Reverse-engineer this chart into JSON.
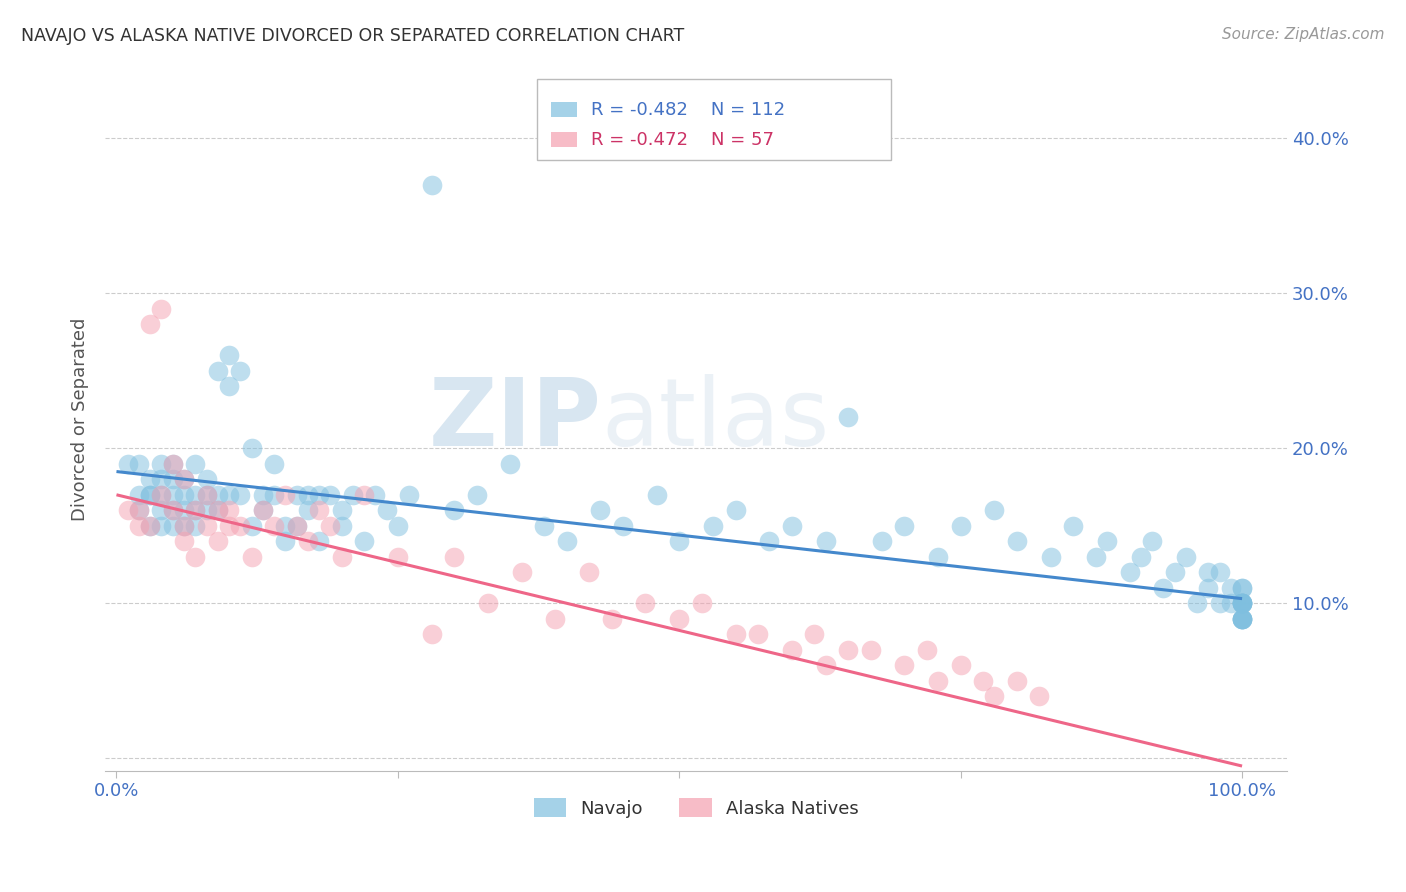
{
  "title": "NAVAJO VS ALASKA NATIVE DIVORCED OR SEPARATED CORRELATION CHART",
  "source": "Source: ZipAtlas.com",
  "ylabel": "Divorced or Separated",
  "yticks": [
    0.0,
    0.1,
    0.2,
    0.3,
    0.4
  ],
  "ytick_labels": [
    "",
    "10.0%",
    "20.0%",
    "30.0%",
    "40.0%"
  ],
  "legend_navajo": "Navajo",
  "legend_alaska": "Alaska Natives",
  "navajo_R": -0.482,
  "navajo_N": 112,
  "alaska_R": -0.472,
  "alaska_N": 57,
  "navajo_color": "#7fbfdf",
  "alaska_color": "#f4a0b0",
  "navajo_line_color": "#4488cc",
  "alaska_line_color": "#ee6688",
  "watermark_zip": "ZIP",
  "watermark_atlas": "atlas",
  "navajo_intercept": 0.185,
  "navajo_slope": -0.082,
  "alaska_intercept": 0.17,
  "alaska_slope": -0.175,
  "navajo_x": [
    0.01,
    0.02,
    0.02,
    0.02,
    0.03,
    0.03,
    0.03,
    0.03,
    0.04,
    0.04,
    0.04,
    0.04,
    0.04,
    0.05,
    0.05,
    0.05,
    0.05,
    0.05,
    0.06,
    0.06,
    0.06,
    0.06,
    0.07,
    0.07,
    0.07,
    0.07,
    0.08,
    0.08,
    0.08,
    0.09,
    0.09,
    0.09,
    0.1,
    0.1,
    0.1,
    0.11,
    0.11,
    0.12,
    0.12,
    0.13,
    0.13,
    0.14,
    0.14,
    0.15,
    0.15,
    0.16,
    0.16,
    0.17,
    0.17,
    0.18,
    0.18,
    0.19,
    0.2,
    0.2,
    0.21,
    0.22,
    0.23,
    0.24,
    0.25,
    0.26,
    0.28,
    0.3,
    0.32,
    0.35,
    0.38,
    0.4,
    0.43,
    0.45,
    0.48,
    0.5,
    0.53,
    0.55,
    0.58,
    0.6,
    0.63,
    0.65,
    0.68,
    0.7,
    0.73,
    0.75,
    0.78,
    0.8,
    0.83,
    0.85,
    0.87,
    0.88,
    0.9,
    0.91,
    0.92,
    0.93,
    0.94,
    0.95,
    0.96,
    0.97,
    0.97,
    0.98,
    0.98,
    0.99,
    0.99,
    1.0,
    1.0,
    1.0,
    1.0,
    1.0,
    1.0,
    1.0,
    1.0,
    1.0,
    1.0,
    1.0,
    1.0,
    1.0
  ],
  "navajo_y": [
    0.19,
    0.17,
    0.16,
    0.19,
    0.15,
    0.17,
    0.18,
    0.17,
    0.16,
    0.15,
    0.17,
    0.19,
    0.18,
    0.16,
    0.15,
    0.18,
    0.17,
    0.19,
    0.16,
    0.17,
    0.15,
    0.18,
    0.17,
    0.16,
    0.19,
    0.15,
    0.16,
    0.18,
    0.17,
    0.16,
    0.25,
    0.17,
    0.26,
    0.24,
    0.17,
    0.25,
    0.17,
    0.15,
    0.2,
    0.17,
    0.16,
    0.19,
    0.17,
    0.15,
    0.14,
    0.17,
    0.15,
    0.17,
    0.16,
    0.17,
    0.14,
    0.17,
    0.16,
    0.15,
    0.17,
    0.14,
    0.17,
    0.16,
    0.15,
    0.17,
    0.37,
    0.16,
    0.17,
    0.19,
    0.15,
    0.14,
    0.16,
    0.15,
    0.17,
    0.14,
    0.15,
    0.16,
    0.14,
    0.15,
    0.14,
    0.22,
    0.14,
    0.15,
    0.13,
    0.15,
    0.16,
    0.14,
    0.13,
    0.15,
    0.13,
    0.14,
    0.12,
    0.13,
    0.14,
    0.11,
    0.12,
    0.13,
    0.1,
    0.11,
    0.12,
    0.1,
    0.12,
    0.1,
    0.11,
    0.1,
    0.09,
    0.1,
    0.11,
    0.09,
    0.1,
    0.11,
    0.1,
    0.09,
    0.1,
    0.09,
    0.1,
    0.09
  ],
  "alaska_x": [
    0.01,
    0.02,
    0.02,
    0.03,
    0.03,
    0.04,
    0.04,
    0.05,
    0.05,
    0.06,
    0.06,
    0.06,
    0.07,
    0.07,
    0.08,
    0.08,
    0.09,
    0.09,
    0.1,
    0.1,
    0.11,
    0.12,
    0.13,
    0.14,
    0.15,
    0.16,
    0.17,
    0.18,
    0.19,
    0.2,
    0.22,
    0.25,
    0.28,
    0.3,
    0.33,
    0.36,
    0.39,
    0.42,
    0.44,
    0.47,
    0.5,
    0.52,
    0.55,
    0.57,
    0.6,
    0.62,
    0.63,
    0.65,
    0.67,
    0.7,
    0.72,
    0.73,
    0.75,
    0.77,
    0.78,
    0.8,
    0.82
  ],
  "alaska_y": [
    0.16,
    0.16,
    0.15,
    0.15,
    0.28,
    0.17,
    0.29,
    0.16,
    0.19,
    0.15,
    0.18,
    0.14,
    0.16,
    0.13,
    0.17,
    0.15,
    0.16,
    0.14,
    0.16,
    0.15,
    0.15,
    0.13,
    0.16,
    0.15,
    0.17,
    0.15,
    0.14,
    0.16,
    0.15,
    0.13,
    0.17,
    0.13,
    0.08,
    0.13,
    0.1,
    0.12,
    0.09,
    0.12,
    0.09,
    0.1,
    0.09,
    0.1,
    0.08,
    0.08,
    0.07,
    0.08,
    0.06,
    0.07,
    0.07,
    0.06,
    0.07,
    0.05,
    0.06,
    0.05,
    0.04,
    0.05,
    0.04
  ]
}
